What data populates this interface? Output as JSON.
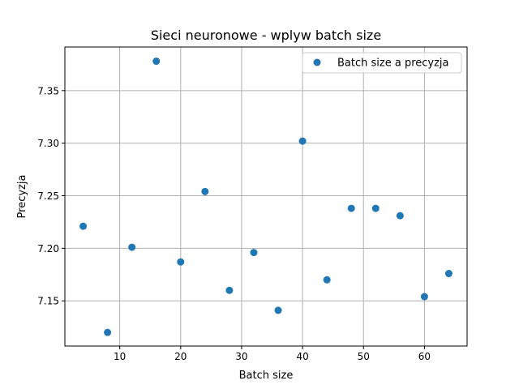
{
  "chart_data": {
    "type": "scatter",
    "title": "Sieci neuronowe - wplyw batch size",
    "xlabel": "Batch size",
    "ylabel": "Precyzja",
    "xlim": [
      1.0,
      67.0
    ],
    "ylim": [
      7.107,
      7.3915
    ],
    "xticks": [
      10,
      20,
      30,
      40,
      50,
      60
    ],
    "yticks": [
      7.15,
      7.2,
      7.25,
      7.3,
      7.35
    ],
    "grid": true,
    "legend": {
      "position": "top-right"
    },
    "series": [
      {
        "name": "Batch size a precyzja",
        "color": "#1f77b4",
        "marker": "circle",
        "points": [
          {
            "x": 4,
            "y": 7.221
          },
          {
            "x": 8,
            "y": 7.12
          },
          {
            "x": 12,
            "y": 7.201
          },
          {
            "x": 16,
            "y": 7.378
          },
          {
            "x": 20,
            "y": 7.187
          },
          {
            "x": 24,
            "y": 7.254
          },
          {
            "x": 28,
            "y": 7.16
          },
          {
            "x": 32,
            "y": 7.196
          },
          {
            "x": 36,
            "y": 7.141
          },
          {
            "x": 40,
            "y": 7.302
          },
          {
            "x": 44,
            "y": 7.17
          },
          {
            "x": 48,
            "y": 7.238
          },
          {
            "x": 52,
            "y": 7.238
          },
          {
            "x": 56,
            "y": 7.231
          },
          {
            "x": 60,
            "y": 7.154
          },
          {
            "x": 64,
            "y": 7.176
          }
        ]
      }
    ]
  }
}
